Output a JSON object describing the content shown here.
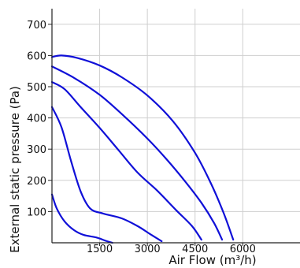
{
  "chart_data": {
    "type": "line",
    "xlabel": "Air Flow (m³/h)",
    "ylabel": "External static pressure (Pa)",
    "xlim": [
      0,
      7800
    ],
    "ylim": [
      0,
      750
    ],
    "x_ticks": [
      1500,
      3000,
      4500,
      6000
    ],
    "y_ticks": [
      100,
      200,
      300,
      400,
      500,
      600,
      700
    ],
    "grid": true,
    "line_color": "#1010d8",
    "grid_color": "#cfcfcf",
    "series": [
      {
        "points": [
          [
            0,
            595
          ],
          [
            300,
            600
          ],
          [
            800,
            592
          ],
          [
            1500,
            568
          ],
          [
            2200,
            530
          ],
          [
            3000,
            472
          ],
          [
            3800,
            390
          ],
          [
            4500,
            288
          ],
          [
            5000,
            190
          ],
          [
            5400,
            95
          ],
          [
            5700,
            10
          ]
        ]
      },
      {
        "points": [
          [
            0,
            565
          ],
          [
            700,
            528
          ],
          [
            1500,
            474
          ],
          [
            2200,
            412
          ],
          [
            3000,
            334
          ],
          [
            3600,
            268
          ],
          [
            4200,
            195
          ],
          [
            4700,
            128
          ],
          [
            5100,
            63
          ],
          [
            5350,
            10
          ]
        ]
      },
      {
        "points": [
          [
            0,
            515
          ],
          [
            400,
            492
          ],
          [
            900,
            435
          ],
          [
            1500,
            368
          ],
          [
            2100,
            296
          ],
          [
            2700,
            224
          ],
          [
            3300,
            168
          ],
          [
            3900,
            105
          ],
          [
            4400,
            54
          ],
          [
            4700,
            10
          ]
        ]
      },
      {
        "points": [
          [
            0,
            435
          ],
          [
            300,
            370
          ],
          [
            600,
            262
          ],
          [
            900,
            165
          ],
          [
            1200,
            110
          ],
          [
            1600,
            94
          ],
          [
            2200,
            78
          ],
          [
            2700,
            53
          ],
          [
            3100,
            27
          ],
          [
            3450,
            5
          ]
        ]
      },
      {
        "points": [
          [
            0,
            155
          ],
          [
            150,
            110
          ],
          [
            400,
            68
          ],
          [
            700,
            40
          ],
          [
            1000,
            25
          ],
          [
            1400,
            17
          ],
          [
            1700,
            6
          ],
          [
            1900,
            0
          ]
        ]
      }
    ]
  }
}
